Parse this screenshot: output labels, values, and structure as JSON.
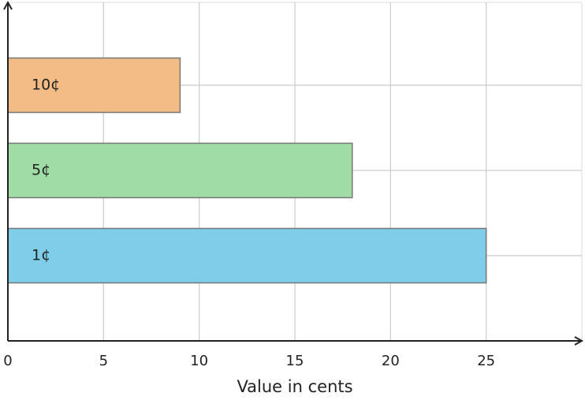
{
  "chart_data": {
    "type": "barh",
    "xlabel": "Value in cents",
    "categories": [
      "1¢",
      "5¢",
      "10¢"
    ],
    "values": [
      25,
      18,
      9
    ],
    "colors": [
      "#7fcde8",
      "#a0dca6",
      "#f3bb85"
    ],
    "xlim": [
      0,
      30
    ],
    "xticks": [
      0,
      5,
      10,
      15,
      20,
      25
    ],
    "grid": true
  }
}
